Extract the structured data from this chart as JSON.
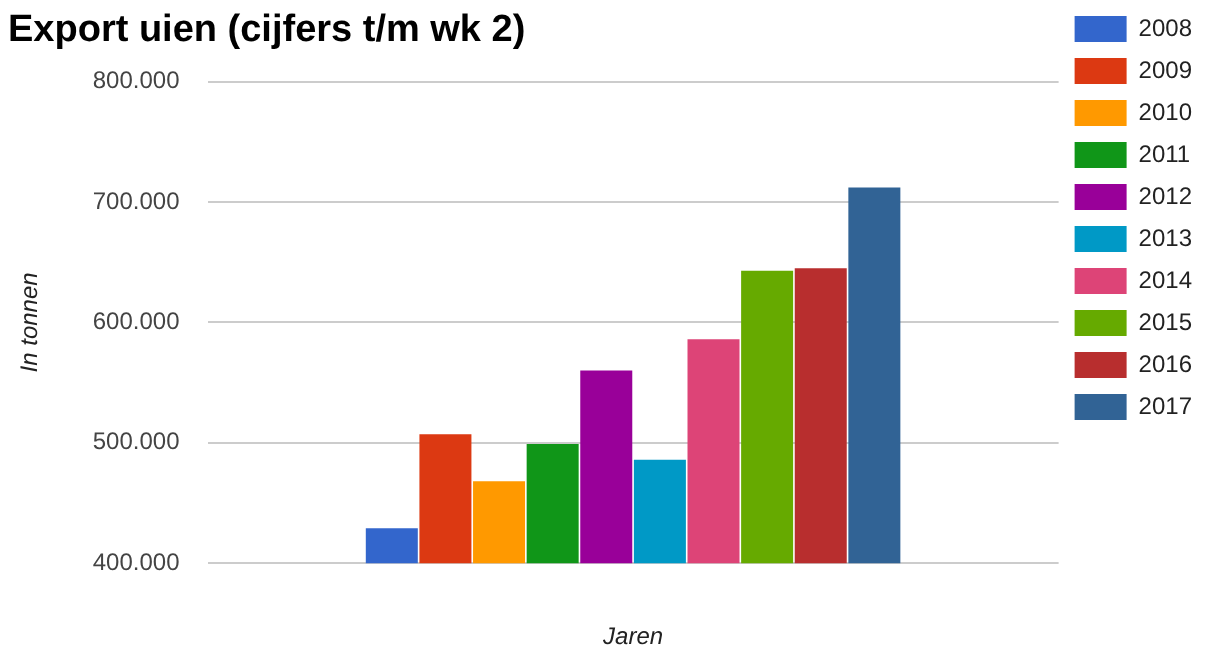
{
  "chart_data": {
    "type": "bar",
    "title": "Export uien (cijfers t/m wk 2)",
    "xlabel": "Jaren",
    "ylabel": "In tonnen",
    "categories": [
      null
    ],
    "series": [
      {
        "name": "2008",
        "color": "#3366cc",
        "values": [
          429000
        ]
      },
      {
        "name": "2009",
        "color": "#dc3912",
        "values": [
          507000
        ]
      },
      {
        "name": "2010",
        "color": "#ff9900",
        "values": [
          468000
        ]
      },
      {
        "name": "2011",
        "color": "#109618",
        "values": [
          499000
        ]
      },
      {
        "name": "2012",
        "color": "#990099",
        "values": [
          560000
        ]
      },
      {
        "name": "2013",
        "color": "#0099c6",
        "values": [
          486000
        ]
      },
      {
        "name": "2014",
        "color": "#dd4477",
        "values": [
          586000
        ]
      },
      {
        "name": "2015",
        "color": "#66aa00",
        "values": [
          643000
        ]
      },
      {
        "name": "2016",
        "color": "#b82e2e",
        "values": [
          645000
        ]
      },
      {
        "name": "2017",
        "color": "#316395",
        "values": [
          712000
        ]
      }
    ],
    "ylim": [
      400000,
      800000
    ],
    "yticks": [
      {
        "value": 400000,
        "label": "400.000"
      },
      {
        "value": 500000,
        "label": "500.000"
      },
      {
        "value": 600000,
        "label": "600.000"
      },
      {
        "value": 700000,
        "label": "700.000"
      },
      {
        "value": 800000,
        "label": "800.000"
      }
    ],
    "grid": "y",
    "legend": "top right",
    "tick_labels": "y"
  }
}
